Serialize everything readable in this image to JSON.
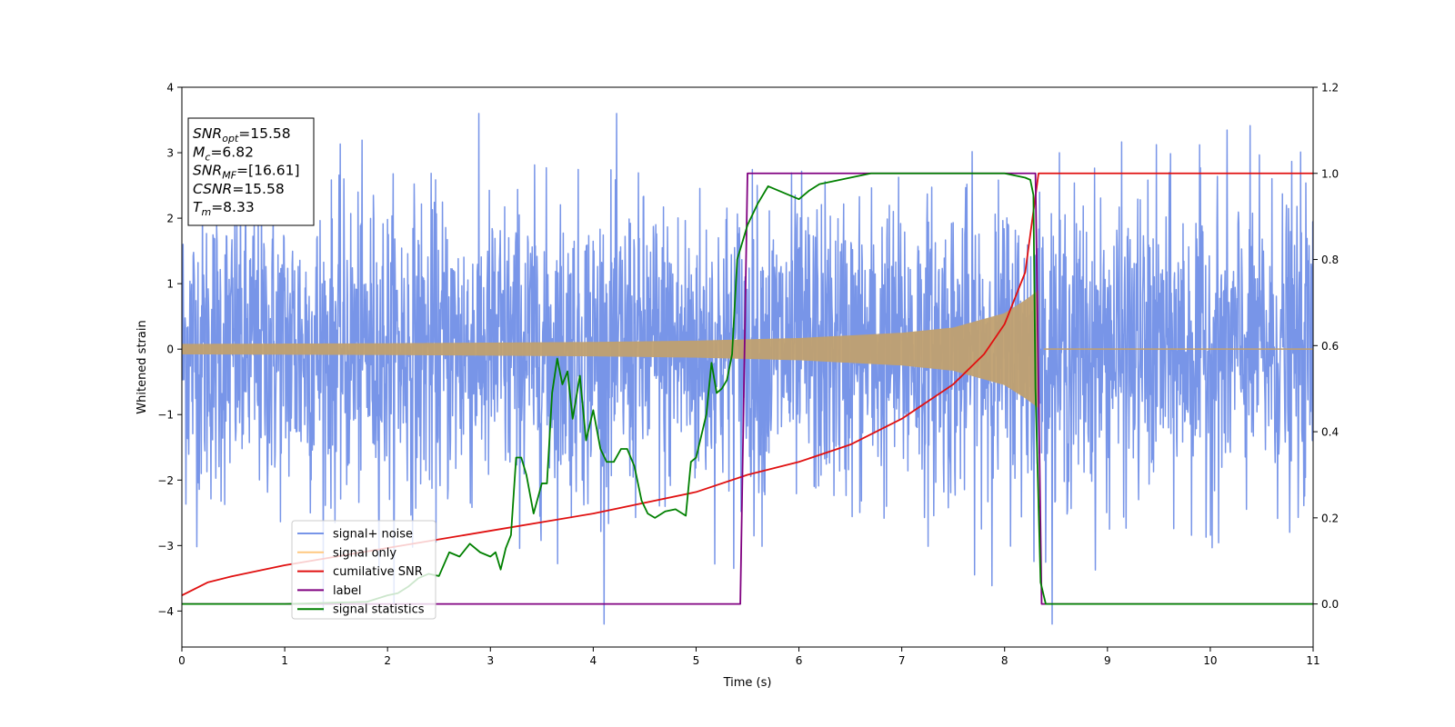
{
  "chart_data": {
    "type": "line",
    "xlabel": "Time (s)",
    "ylabel": "Whitened strain",
    "xlim": [
      0,
      11
    ],
    "ylim_left": [
      -4.55,
      4.0
    ],
    "ylim_right": [
      -0.1,
      1.2
    ],
    "x_ticks": [
      "0",
      "1",
      "2",
      "3",
      "4",
      "5",
      "6",
      "7",
      "8",
      "9",
      "10",
      "11"
    ],
    "y_left_ticks": [
      "−4",
      "−3",
      "−2",
      "−1",
      "0",
      "1",
      "2",
      "3",
      "4"
    ],
    "y_right_ticks": [
      "0.0",
      "0.2",
      "0.4",
      "0.6",
      "0.8",
      "1.0",
      "1.2"
    ],
    "grid": false,
    "legend_position": "lower-left",
    "info_box": [
      {
        "main": "SNR",
        "sub": "opt",
        "value": "=15.58"
      },
      {
        "main": "M",
        "sub": "c",
        "value": "=6.82"
      },
      {
        "main": "SNR",
        "sub": "MF",
        "value": "=[16.61]"
      },
      {
        "main": "CSNR",
        "sub": "",
        "value": "=15.58"
      },
      {
        "main": "T",
        "sub": "m",
        "value": "=8.33"
      }
    ],
    "series": [
      {
        "name": "signal+ noise",
        "axis": "left",
        "color": "#7895e8",
        "style": "noise band",
        "x": [
          0,
          11
        ],
        "mean": 0,
        "approx_range": [
          -4.2,
          3.6
        ]
      },
      {
        "name": "signal only",
        "axis": "left",
        "color": "#c0a070",
        "style": "chirp envelope",
        "x": [
          0,
          1,
          2,
          3,
          4,
          5,
          6,
          7,
          7.5,
          8,
          8.2,
          8.33,
          11
        ],
        "envelope": [
          0.08,
          0.085,
          0.09,
          0.1,
          0.11,
          0.13,
          0.17,
          0.25,
          0.33,
          0.55,
          0.75,
          0.9,
          0
        ]
      },
      {
        "name": "cumilative SNR",
        "axis": "right",
        "color": "#e01010",
        "x": [
          0,
          0.25,
          0.5,
          1,
          1.5,
          2,
          3,
          4,
          5,
          5.5,
          6,
          6.5,
          7,
          7.5,
          7.8,
          8,
          8.2,
          8.33,
          11
        ],
        "y": [
          0.02,
          0.05,
          0.065,
          0.09,
          0.11,
          0.13,
          0.17,
          0.21,
          0.26,
          0.3,
          0.33,
          0.37,
          0.43,
          0.51,
          0.58,
          0.65,
          0.77,
          1.0,
          1.0
        ]
      },
      {
        "name": "label",
        "axis": "right",
        "color": "#800080",
        "x": [
          0,
          5.43,
          5.5,
          8.3,
          8.36,
          11
        ],
        "y": [
          0,
          0,
          1,
          1,
          0,
          0
        ]
      },
      {
        "name": "signal statistics",
        "axis": "right",
        "color": "#008000",
        "x": [
          0,
          1,
          1.8,
          2,
          2.1,
          2.2,
          2.3,
          2.4,
          2.5,
          2.6,
          2.7,
          2.8,
          2.9,
          3.0,
          3.05,
          3.1,
          3.15,
          3.2,
          3.25,
          3.3,
          3.35,
          3.42,
          3.5,
          3.55,
          3.6,
          3.65,
          3.7,
          3.75,
          3.8,
          3.87,
          3.93,
          4.0,
          4.07,
          4.13,
          4.2,
          4.27,
          4.33,
          4.4,
          4.47,
          4.53,
          4.6,
          4.7,
          4.8,
          4.9,
          4.95,
          5.0,
          5.05,
          5.1,
          5.15,
          5.2,
          5.25,
          5.3,
          5.35,
          5.4,
          5.5,
          5.6,
          5.7,
          5.8,
          5.9,
          6.0,
          6.1,
          6.2,
          6.3,
          6.5,
          6.7,
          7.0,
          7.5,
          8.0,
          8.2,
          8.25,
          8.28,
          8.3,
          8.35,
          8.4,
          11
        ],
        "y": [
          0.0,
          0.0,
          0.005,
          0.02,
          0.025,
          0.04,
          0.06,
          0.07,
          0.065,
          0.12,
          0.11,
          0.14,
          0.12,
          0.11,
          0.12,
          0.08,
          0.13,
          0.16,
          0.34,
          0.34,
          0.3,
          0.21,
          0.28,
          0.28,
          0.49,
          0.57,
          0.51,
          0.54,
          0.43,
          0.53,
          0.38,
          0.45,
          0.36,
          0.33,
          0.33,
          0.36,
          0.36,
          0.32,
          0.24,
          0.21,
          0.2,
          0.215,
          0.22,
          0.205,
          0.33,
          0.34,
          0.39,
          0.44,
          0.56,
          0.49,
          0.5,
          0.52,
          0.58,
          0.8,
          0.88,
          0.93,
          0.97,
          0.96,
          0.95,
          0.94,
          0.96,
          0.975,
          0.98,
          0.99,
          1.0,
          1.0,
          1.0,
          1.0,
          0.99,
          0.985,
          0.95,
          0.5,
          0.05,
          0.0,
          0.0
        ]
      }
    ]
  }
}
